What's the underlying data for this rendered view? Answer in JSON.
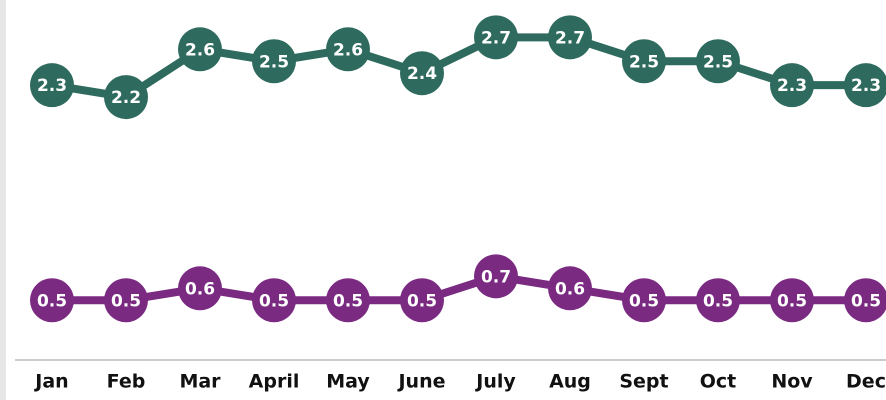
{
  "chart_data": {
    "type": "line",
    "categories": [
      "Jan",
      "Feb",
      "Mar",
      "April",
      "May",
      "June",
      "July",
      "Aug",
      "Sept",
      "Oct",
      "Nov",
      "Dec"
    ],
    "series": [
      {
        "color": "#2e6b5e",
        "values": [
          2.3,
          2.2,
          2.6,
          2.5,
          2.6,
          2.4,
          2.7,
          2.7,
          2.5,
          2.5,
          2.3,
          2.3
        ]
      },
      {
        "color": "#7b2a82",
        "values": [
          0.5,
          0.5,
          0.6,
          0.5,
          0.5,
          0.5,
          0.7,
          0.6,
          0.5,
          0.5,
          0.5,
          0.5
        ]
      }
    ],
    "ylim": [
      0,
      3
    ]
  }
}
